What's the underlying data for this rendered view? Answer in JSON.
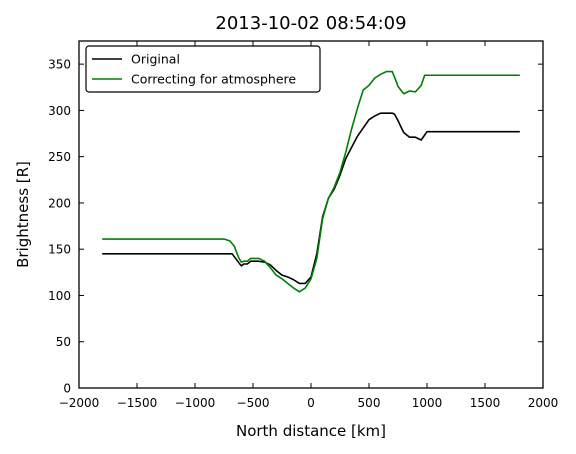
{
  "chart_data": {
    "type": "line",
    "title": "2013-10-02 08:54:09",
    "xlabel": "North distance [km]",
    "ylabel": "Brightness [R]",
    "xlim": [
      -2000,
      2000
    ],
    "ylim": [
      0,
      375
    ],
    "xticks": [
      -2000,
      -1500,
      -1000,
      -500,
      0,
      500,
      1000,
      1500,
      2000
    ],
    "yticks": [
      0,
      50,
      100,
      150,
      200,
      250,
      300,
      350
    ],
    "xtick_labels": [
      "−2000",
      "−1500",
      "−1000",
      "−500",
      "0",
      "500",
      "1000",
      "1500",
      "2000"
    ],
    "ytick_labels": [
      "0",
      "50",
      "100",
      "150",
      "200",
      "250",
      "300",
      "350"
    ],
    "grid": false,
    "legend_position": "top-left",
    "series": [
      {
        "name": "Original",
        "color": "#000000",
        "x": [
          -1800,
          -1500,
          -1000,
          -700,
          -680,
          -650,
          -620,
          -600,
          -580,
          -550,
          -520,
          -500,
          -480,
          -450,
          -400,
          -350,
          -300,
          -250,
          -200,
          -150,
          -100,
          -50,
          0,
          50,
          100,
          150,
          200,
          250,
          300,
          350,
          400,
          450,
          500,
          550,
          600,
          650,
          700,
          720,
          750,
          780,
          800,
          850,
          900,
          950,
          1000,
          1200,
          1500,
          1800
        ],
        "y": [
          145,
          145,
          145,
          145,
          145,
          140,
          135,
          132,
          134,
          134,
          137,
          137,
          137,
          137,
          136,
          133,
          127,
          122,
          120,
          117,
          113,
          113,
          120,
          145,
          185,
          205,
          215,
          230,
          248,
          260,
          272,
          281,
          290,
          294,
          297,
          297,
          297,
          296,
          289,
          281,
          276,
          271,
          271,
          268,
          277,
          277,
          277,
          277
        ]
      },
      {
        "name": "Correcting for atmosphere",
        "color": "#008000",
        "x": [
          -1800,
          -1500,
          -1000,
          -750,
          -700,
          -660,
          -640,
          -620,
          -600,
          -580,
          -550,
          -520,
          -500,
          -480,
          -450,
          -400,
          -350,
          -300,
          -250,
          -200,
          -150,
          -100,
          -50,
          0,
          50,
          100,
          150,
          200,
          250,
          300,
          350,
          400,
          450,
          500,
          550,
          600,
          650,
          700,
          720,
          750,
          780,
          800,
          850,
          900,
          950,
          980,
          1000,
          1200,
          1500,
          1800
        ],
        "y": [
          161,
          161,
          161,
          161,
          159,
          153,
          146,
          140,
          136,
          137,
          137,
          140,
          140,
          140,
          140,
          137,
          130,
          122,
          118,
          113,
          108,
          104,
          108,
          118,
          140,
          183,
          205,
          217,
          233,
          255,
          280,
          302,
          322,
          327,
          335,
          339,
          342,
          342,
          336,
          326,
          321,
          318,
          321,
          320,
          327,
          338,
          338,
          338,
          338,
          338
        ]
      }
    ]
  }
}
